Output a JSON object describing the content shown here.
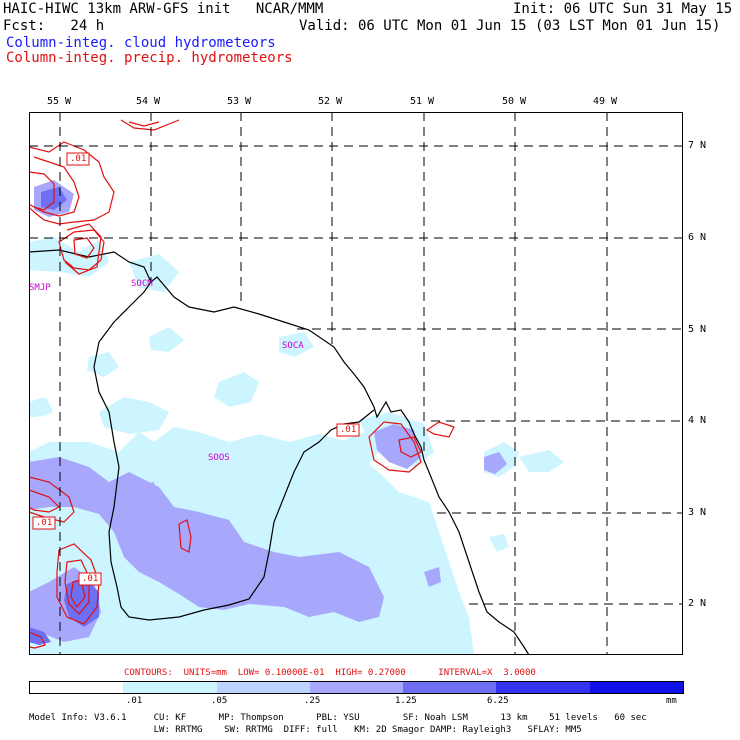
{
  "header": {
    "title": "HAIC-HIWC 13km ARW-GFS init   NCAR/MMM",
    "init": "Init: 06 UTC Sun 31 May 15",
    "fcst": "Fcst:   24 h",
    "valid": "Valid: 06 UTC Mon 01 Jun 15 (03 LST Mon 01 Jun 15)",
    "field_blue": "Column-integ. cloud hydrometeors",
    "field_red": "Column-integ. precip. hydrometeors",
    "color_blue": "#1a1aff",
    "color_red": "#e01010"
  },
  "map": {
    "lon_labels": [
      "55 W",
      "54 W",
      "53 W",
      "52 W",
      "51 W",
      "50 W",
      "49 W"
    ],
    "lat_labels": [
      "7 N",
      "6 N",
      "5 N",
      "4 N",
      "3 N",
      "2 N"
    ],
    "stations": [
      "SMJP",
      "SOCM",
      "SOCA",
      "SOOS"
    ],
    "contour_labels": [
      ".01",
      ".01",
      ".01",
      ".01"
    ]
  },
  "contours_line": "CONTOURS:  UNITS=mm  LOW= 0.10000E-01  HIGH= 0.27000      INTERVAL=X  3.0000",
  "legend": {
    "ticks": [
      ".01",
      ".05",
      ".25",
      "1.25",
      "6.25"
    ],
    "unit": "mm",
    "colors": [
      "#ffffff",
      "#ccf5ff",
      "#bcd2ff",
      "#a7a7fb",
      "#6f6ff3",
      "#3434f0",
      "#1010e8"
    ]
  },
  "footer": {
    "line1": "Model Info: V3.6.1     CU: KF      MP: Thompson      PBL: YSU        SF: Noah LSM      13 km    51 levels   60 sec",
    "line2": "                       LW: RRTMG    SW: RRTMG  DIFF: full   KM: 2D Smagor DAMP: Rayleigh3   SFLAY: MM5"
  }
}
